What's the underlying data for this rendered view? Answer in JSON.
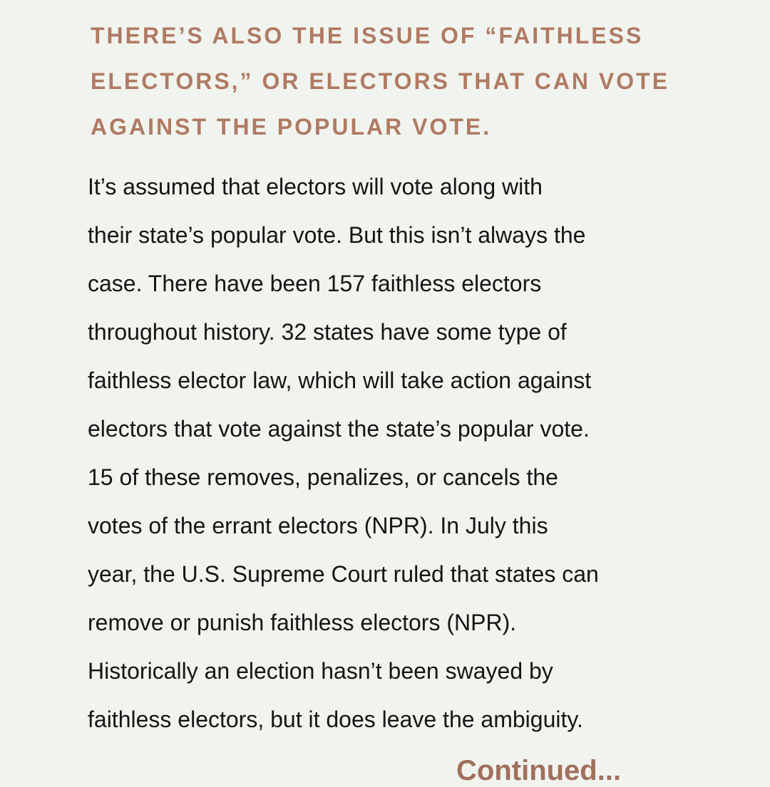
{
  "heading": "There’s also the issue of “faithless electors,” or electors that can vote against the popular vote.",
  "body_lines": [
    "It’s assumed that electors will vote along with",
    "their state’s popular vote. But this isn’t always the",
    "case. There have been 157 faithless electors",
    "throughout history. 32 states have some type of",
    "faithless elector law, which will take action against",
    "electors that vote against the state’s popular vote.",
    "15 of these removes, penalizes, or cancels the",
    "votes of the errant electors (NPR). In July this",
    "year, the U.S. Supreme Court ruled that states can",
    "remove or punish faithless electors (NPR).",
    "Historically an election hasn’t been swayed by",
    "faithless electors, but it does leave the ambiguity."
  ],
  "continuation": "Continued...",
  "colors": {
    "background": "#f1f4ee",
    "heading": "#b07a63",
    "body": "#151515"
  }
}
